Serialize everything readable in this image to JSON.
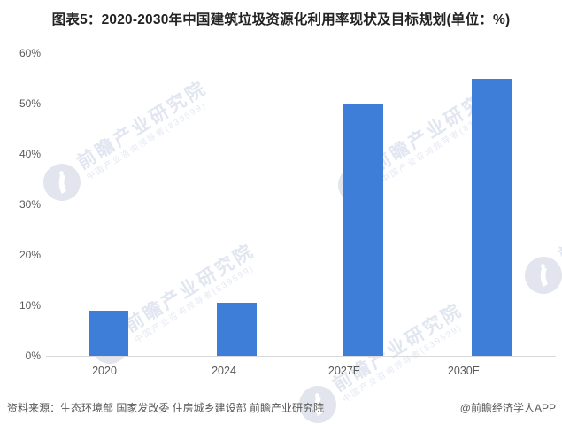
{
  "title": "图表5：2020-2030年中国建筑垃圾资源化利用率现状及目标规划(单位：%)",
  "chart_data": {
    "type": "bar",
    "title": "图表5：2020-2030年中国建筑垃圾资源化利用率现状及目标规划(单位：%)",
    "unit": "%",
    "categories": [
      "2020",
      "2024",
      "2027E",
      "2030E"
    ],
    "values": [
      9,
      10.5,
      50,
      55
    ],
    "xlabel": "",
    "ylabel": "",
    "ylim": [
      0,
      60
    ],
    "ytick_step": 10,
    "ytick_labels": [
      "0%",
      "10%",
      "20%",
      "30%",
      "40%",
      "50%",
      "60%"
    ],
    "grid": false,
    "legend": null,
    "bar_color": "#3E7ED8"
  },
  "footer": {
    "source": "资料来源：生态环境部 国家发改委 住房城乡建设部 前瞻产业研究院",
    "credit": "@前瞻经济学人APP"
  },
  "watermark": {
    "brand": "前瞻产业研究院",
    "subtitle": "中国产业咨询领导者(839599)"
  },
  "colors": {
    "bar": "#3E7ED8",
    "axis_line": "#D9D9D9",
    "tick_text": "#595959",
    "title_text": "#222222",
    "footer_text": "#595959",
    "watermark_text": "#CDD6E8",
    "watermark_logo": "#C5CCDC"
  }
}
